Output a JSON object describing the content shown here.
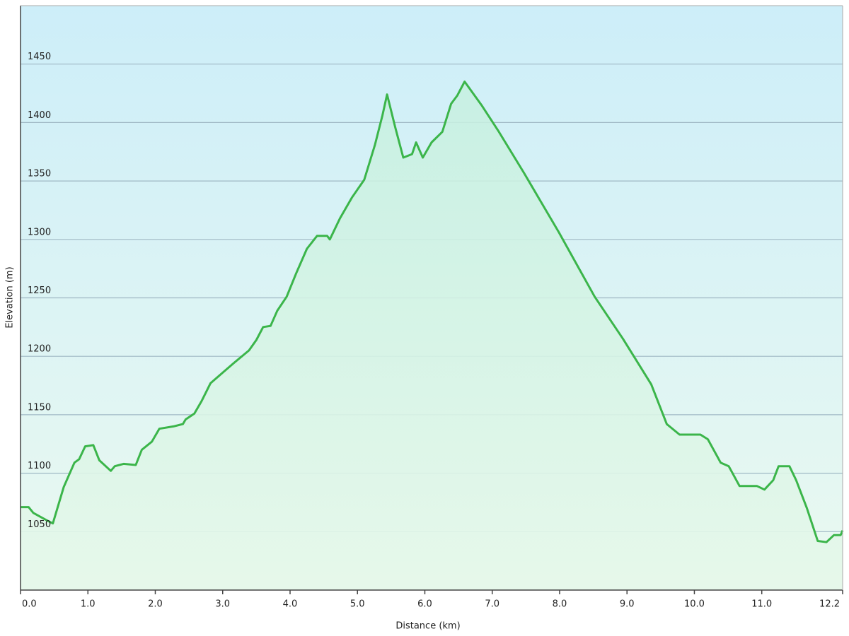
{
  "chart_data": {
    "type": "area-line",
    "xlabel": "Distance  (km)",
    "ylabel": "Elevation (m)",
    "x": [
      0,
      0.12,
      0.19,
      0.38,
      0.48,
      0.64,
      0.8,
      0.87,
      0.96,
      1.08,
      1.17,
      1.34,
      1.4,
      1.53,
      1.71,
      1.8,
      1.95,
      2.06,
      2.27,
      2.41,
      2.45,
      2.58,
      2.69,
      2.82,
      3.0,
      3.16,
      3.39,
      3.5,
      3.6,
      3.71,
      3.81,
      3.95,
      4.09,
      4.25,
      4.4,
      4.55,
      4.59,
      4.74,
      4.92,
      5.1,
      5.26,
      5.37,
      5.44,
      5.56,
      5.68,
      5.81,
      5.87,
      5.97,
      6.1,
      6.26,
      6.39,
      6.48,
      6.59,
      6.84,
      7.1,
      7.47,
      7.99,
      8.52,
      8.94,
      9.36,
      9.59,
      9.78,
      10.09,
      10.2,
      10.39,
      10.51,
      10.67,
      10.93,
      11.04,
      11.17,
      11.25,
      11.41,
      11.51,
      11.67,
      11.83,
      11.96,
      12.07,
      12.17,
      12.2
    ],
    "series": [
      {
        "color": "#3bb54a",
        "values": [
          1071,
          1071,
          1066,
          1060,
          1057,
          1088,
          1109,
          1112,
          1123,
          1124,
          1111,
          1102,
          1106,
          1108,
          1107,
          1120,
          1127,
          1138,
          1140,
          1142,
          1146,
          1151,
          1162,
          1177,
          1186,
          1194,
          1205,
          1214,
          1225,
          1226,
          1239,
          1251,
          1271,
          1292,
          1303,
          1303,
          1300,
          1318,
          1336,
          1351,
          1381,
          1406,
          1424,
          1396,
          1370,
          1373,
          1383,
          1370,
          1383,
          1392,
          1416,
          1423,
          1435,
          1415,
          1392,
          1357,
          1306,
          1251,
          1215,
          1176,
          1142,
          1133,
          1133,
          1129,
          1109,
          1106,
          1089,
          1089,
          1086,
          1094,
          1106,
          1106,
          1094,
          1070,
          1042,
          1041,
          1047,
          1047,
          1051
        ]
      }
    ],
    "xlim": [
      0,
      12.2
    ],
    "ylim": [
      1000,
      1500
    ],
    "xticks": [
      {
        "value": 0,
        "label": "0.0"
      },
      {
        "value": 1,
        "label": "1.0"
      },
      {
        "value": 2,
        "label": "2.0"
      },
      {
        "value": 3,
        "label": "3.0"
      },
      {
        "value": 4,
        "label": "4.0"
      },
      {
        "value": 5,
        "label": "5.0"
      },
      {
        "value": 6,
        "label": "6.0"
      },
      {
        "value": 7,
        "label": "7.0"
      },
      {
        "value": 8,
        "label": "8.0"
      },
      {
        "value": 9,
        "label": "9.0"
      },
      {
        "value": 10,
        "label": "10.0"
      },
      {
        "value": 11,
        "label": "11.0"
      },
      12.2
    ],
    "yticks": [
      1050,
      1100,
      1150,
      1200,
      1250,
      1300,
      1350,
      1400,
      1450
    ],
    "grid": true
  }
}
